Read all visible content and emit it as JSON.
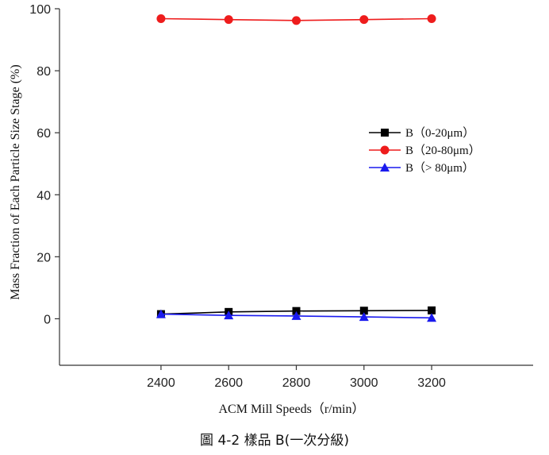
{
  "chart_data": {
    "type": "line",
    "xlabel": "ACM Mill Speeds（r/min）",
    "ylabel": "Mass Fraction of Each Particle Size Stage (%)",
    "x": [
      2400,
      2600,
      2800,
      3000,
      3200
    ],
    "xlim": [
      2100,
      3500
    ],
    "ylim": [
      -15,
      100
    ],
    "xticks": [
      "2400",
      "2600",
      "2800",
      "3000",
      "3200"
    ],
    "yticks": [
      "0",
      "20",
      "40",
      "60",
      "80",
      "100"
    ],
    "grid": false,
    "legend_position": "right",
    "series": [
      {
        "name": "B（0-20μm）",
        "color": "#000000",
        "marker": "square",
        "values": [
          1.5,
          2.2,
          2.5,
          2.6,
          2.7
        ]
      },
      {
        "name": "B（20-80μm）",
        "color": "#ee1c1c",
        "marker": "circle",
        "values": [
          96.8,
          96.5,
          96.2,
          96.5,
          96.8
        ]
      },
      {
        "name": "B（> 80μm）",
        "color": "#1a1aee",
        "marker": "triangle",
        "values": [
          1.5,
          1.1,
          0.9,
          0.6,
          0.3
        ]
      }
    ]
  },
  "caption": "圖 4-2 樣品 B(一次分級)"
}
